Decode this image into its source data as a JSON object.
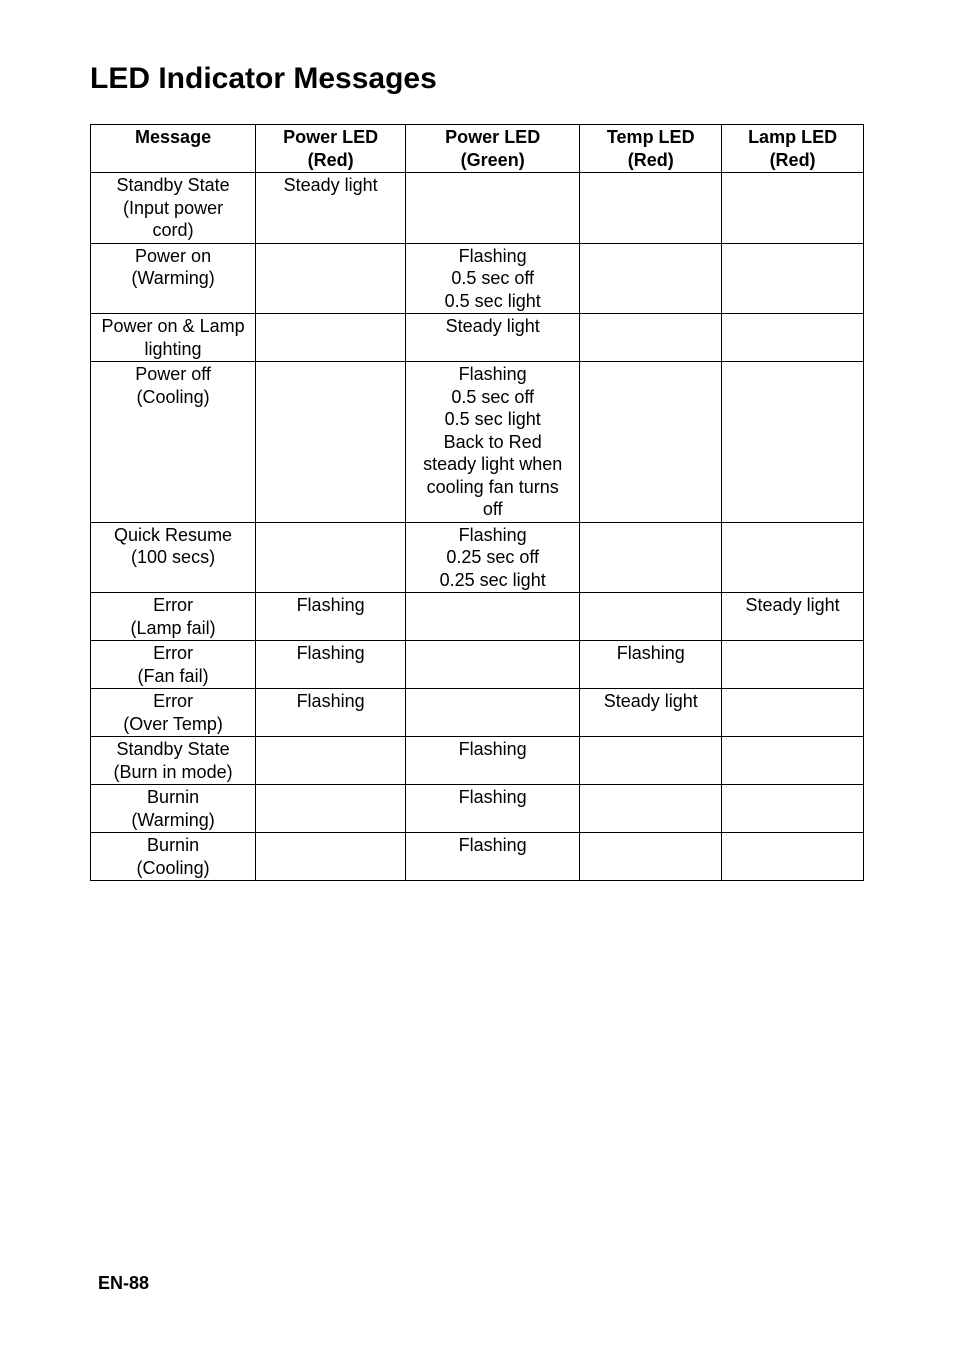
{
  "title": "LED Indicator Messages",
  "footer": "EN-88",
  "table": {
    "background_color": "#ffffff",
    "border_color": "#000000",
    "text_color": "#000000",
    "header_fontweight": "bold",
    "fontsize_pt": 14,
    "columns": [
      {
        "lines": [
          "Message"
        ]
      },
      {
        "lines": [
          "Power LED",
          "(Red)"
        ]
      },
      {
        "lines": [
          "Power LED",
          "(Green)"
        ]
      },
      {
        "lines": [
          "Temp LED",
          "(Red)"
        ]
      },
      {
        "lines": [
          "Lamp LED",
          "(Red)"
        ]
      }
    ],
    "rows": [
      [
        [
          "Standby State",
          "(Input power",
          "cord)"
        ],
        [
          "Steady light"
        ],
        [],
        [],
        []
      ],
      [
        [
          "Power on",
          "(Warming)"
        ],
        [],
        [
          "Flashing",
          "0.5 sec off",
          "0.5 sec light"
        ],
        [],
        []
      ],
      [
        [
          "Power on & Lamp",
          "lighting"
        ],
        [],
        [
          "Steady light"
        ],
        [],
        []
      ],
      [
        [
          "Power off",
          "(Cooling)"
        ],
        [],
        [
          "Flashing",
          "0.5 sec off",
          "0.5 sec light",
          "Back to Red",
          "steady light when",
          "cooling fan turns",
          "off"
        ],
        [],
        []
      ],
      [
        [
          "Quick Resume",
          "(100 secs)"
        ],
        [],
        [
          "Flashing",
          "0.25 sec off",
          "0.25 sec light"
        ],
        [],
        []
      ],
      [
        [
          "Error",
          "(Lamp fail)"
        ],
        [
          "Flashing"
        ],
        [],
        [],
        [
          "Steady light"
        ]
      ],
      [
        [
          "Error",
          "(Fan fail)"
        ],
        [
          "Flashing"
        ],
        [],
        [
          "Flashing"
        ],
        []
      ],
      [
        [
          "Error",
          "(Over Temp)"
        ],
        [
          "Flashing"
        ],
        [],
        [
          "Steady light"
        ],
        []
      ],
      [
        [
          "Standby State",
          "(Burn in mode)"
        ],
        [],
        [
          "Flashing"
        ],
        [],
        []
      ],
      [
        [
          "Burnin",
          "(Warming)"
        ],
        [],
        [
          "Flashing"
        ],
        [],
        []
      ],
      [
        [
          "Burnin",
          "(Cooling)"
        ],
        [],
        [
          "Flashing"
        ],
        [],
        []
      ]
    ]
  }
}
